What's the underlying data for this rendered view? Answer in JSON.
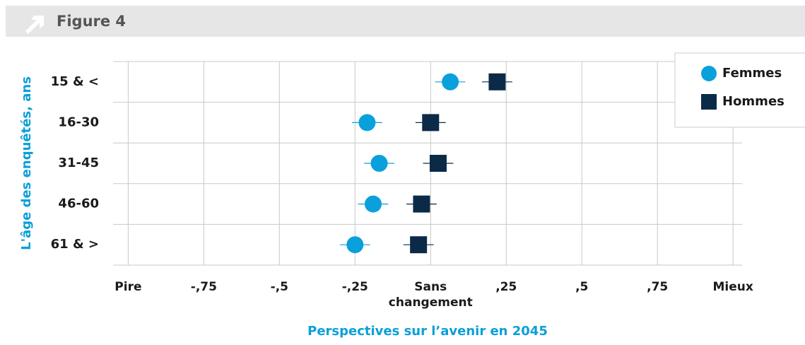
{
  "figure_label": "Figure 4",
  "chart_data": {
    "type": "dotplot",
    "xlabel": "Perspectives sur l’avenir en 2045",
    "ylabel": "L'âge des enquêtés, ans",
    "categories": [
      "15 & <",
      "16-30",
      "31-45",
      "46-60",
      "61 & >"
    ],
    "xlim": [
      -1.05,
      1.03
    ],
    "xticks": [
      {
        "value": -1,
        "label": "Pire"
      },
      {
        "value": -0.75,
        "label": "-,75"
      },
      {
        "value": -0.5,
        "label": "-,5"
      },
      {
        "value": -0.25,
        "label": "-,25"
      },
      {
        "value": 0,
        "label": "Sans changement"
      },
      {
        "value": 0.25,
        "label": ",25"
      },
      {
        "value": 0.5,
        "label": ",5"
      },
      {
        "value": 0.75,
        "label": ",75"
      },
      {
        "value": 1,
        "label": "Mieux"
      }
    ],
    "grid": true,
    "legend": "upper right",
    "series": [
      {
        "name": "Femmes",
        "color": "#0aa0dc",
        "marker": "circle",
        "values": [
          0.065,
          -0.21,
          -0.17,
          -0.19,
          -0.25
        ],
        "errors": [
          0.05,
          0.05,
          0.05,
          0.05,
          0.05
        ]
      },
      {
        "name": "Hommes",
        "color": "#0b2a47",
        "marker": "square",
        "values": [
          0.22,
          0.0,
          0.025,
          -0.03,
          -0.04
        ],
        "errors": [
          0.05,
          0.05,
          0.05,
          0.05,
          0.05
        ]
      }
    ]
  }
}
